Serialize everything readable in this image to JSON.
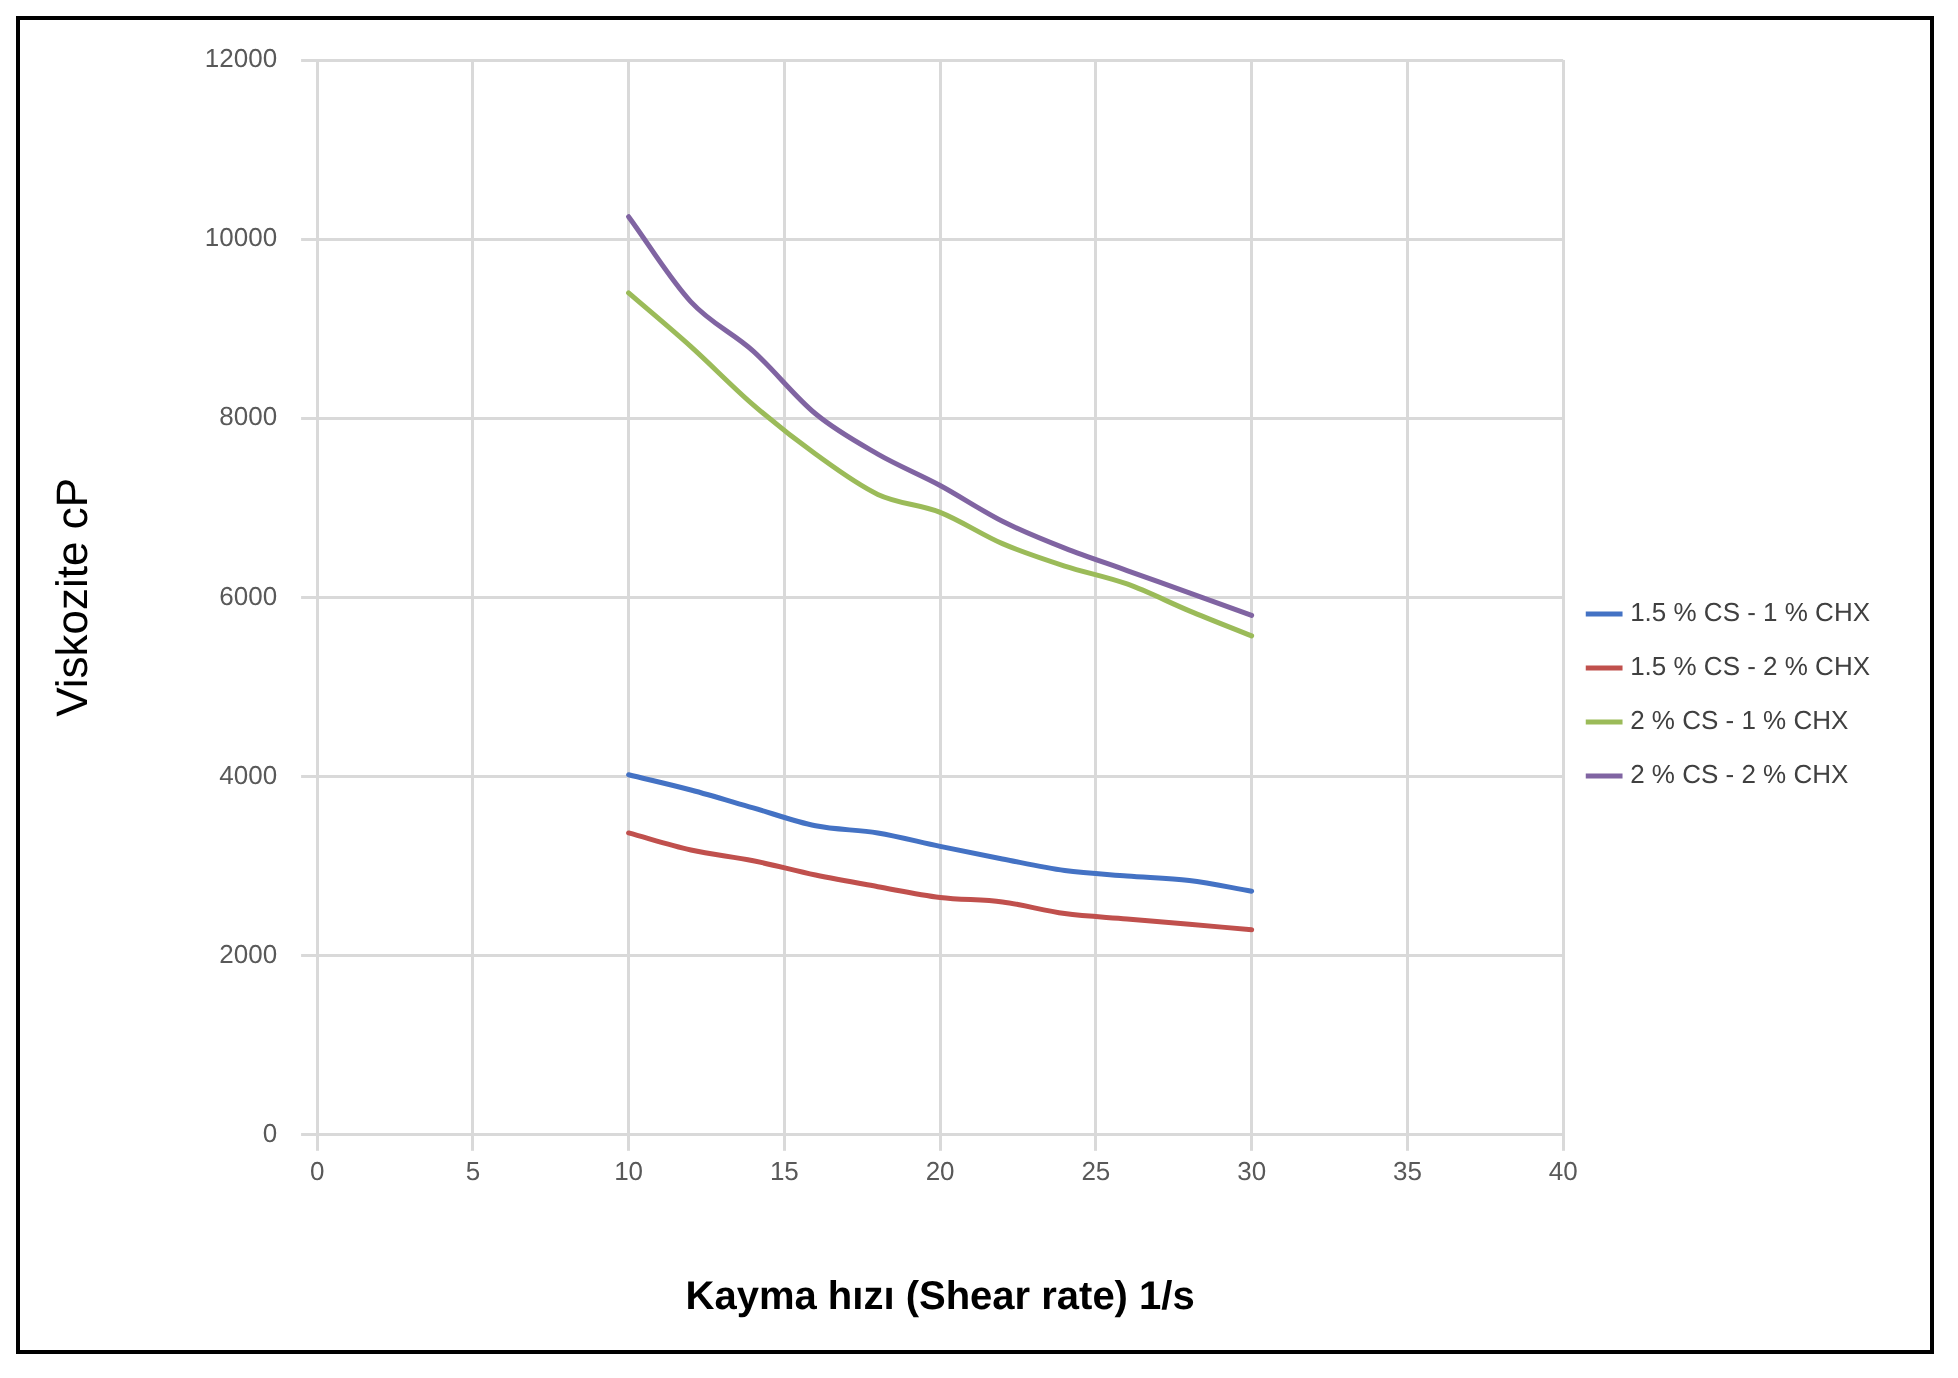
{
  "chart_data": {
    "type": "line",
    "xlabel": "Kayma hızı (Shear rate) 1/s",
    "ylabel": "Viskozite cP",
    "x": [
      10,
      12,
      14,
      16,
      18,
      20,
      22,
      24,
      26,
      28,
      30
    ],
    "series": [
      {
        "name": "1.5 % CS - 1 % CHX",
        "color": "#4472c4",
        "values": [
          4020,
          3850,
          3650,
          3450,
          3370,
          3220,
          3080,
          2950,
          2890,
          2840,
          2720
        ]
      },
      {
        "name": "1.5 % CS - 2 % CHX",
        "color": "#c0504d",
        "values": [
          3370,
          3180,
          3060,
          2900,
          2770,
          2650,
          2600,
          2470,
          2410,
          2350,
          2290
        ]
      },
      {
        "name": "2 % CS - 1 % CHX",
        "color": "#9bbb59",
        "values": [
          9400,
          8800,
          8150,
          7600,
          7150,
          6950,
          6600,
          6350,
          6150,
          5850,
          5570
        ]
      },
      {
        "name": "2 % CS - 2 % CHX",
        "color": "#8064a2",
        "values": [
          10250,
          9300,
          8750,
          8050,
          7600,
          7250,
          6850,
          6550,
          6300,
          6050,
          5800
        ]
      }
    ],
    "xlim": [
      0,
      40
    ],
    "xticks": [
      0,
      5,
      10,
      15,
      20,
      25,
      30,
      35,
      40
    ],
    "ylim": [
      0,
      12000
    ],
    "yticks": [
      0,
      2000,
      4000,
      6000,
      8000,
      10000,
      12000
    ],
    "grid": true,
    "legend": "right",
    "marker": "none",
    "line_style": "solid"
  }
}
